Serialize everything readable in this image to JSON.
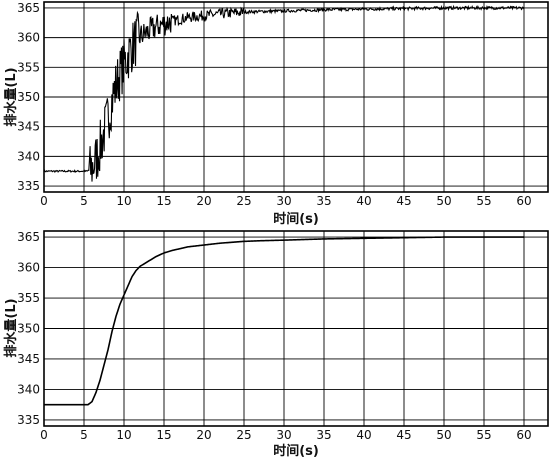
{
  "chart_data": [
    {
      "type": "line",
      "xlabel": "时间(s)",
      "ylabel": "排水量(L)",
      "xlim": [
        0,
        63
      ],
      "ylim": [
        334,
        366
      ],
      "xticks": [
        0,
        5,
        10,
        15,
        20,
        25,
        30,
        35,
        40,
        45,
        50,
        55,
        60
      ],
      "yticks": [
        335,
        340,
        345,
        350,
        355,
        360,
        365
      ],
      "grid": true,
      "series": [
        {
          "style": "noisy",
          "x": [
            0,
            5.5,
            6.0,
            6.5,
            7.0,
            7.5,
            8.0,
            8.5,
            9.0,
            9.5,
            10.0,
            10.5,
            11.0,
            11.5,
            12.0,
            13.0,
            14.0,
            15.0,
            16.0,
            17.0,
            18.0,
            20.0,
            22.0,
            24.0,
            25.0,
            27.0,
            30.0,
            35.0,
            40.0,
            45.0,
            50.0,
            55.0,
            60.0
          ],
          "y": [
            337.5,
            337.5,
            338.0,
            339.5,
            341.5,
            344.0,
            346.5,
            349.5,
            352.0,
            354.0,
            355.5,
            357.0,
            358.5,
            359.5,
            360.2,
            361.0,
            361.8,
            362.4,
            362.8,
            363.1,
            363.4,
            363.7,
            364.0,
            364.2,
            364.3,
            364.4,
            364.5,
            364.7,
            364.8,
            364.9,
            365.0,
            365.0,
            365.0
          ]
        },
        {
          "style": "smooth",
          "x": [
            0,
            5.5,
            6.0,
            6.5,
            7.0,
            7.5,
            8.0,
            8.5,
            9.0,
            9.5,
            10.0,
            10.5,
            11.0,
            11.5,
            12.0,
            13.0,
            14.0,
            15.0,
            16.0,
            17.0,
            18.0,
            20.0,
            22.0,
            24.0,
            25.0,
            27.0,
            30.0,
            35.0,
            40.0,
            45.0,
            50.0,
            55.0,
            60.0
          ],
          "y": [
            337.5,
            337.5,
            338.0,
            339.5,
            341.5,
            344.0,
            346.5,
            349.5,
            352.0,
            354.0,
            355.5,
            357.0,
            358.5,
            359.5,
            360.2,
            361.0,
            361.8,
            362.4,
            362.8,
            363.1,
            363.4,
            363.7,
            364.0,
            364.2,
            364.3,
            364.4,
            364.5,
            364.7,
            364.8,
            364.9,
            365.0,
            365.0,
            365.0
          ]
        }
      ]
    }
  ]
}
